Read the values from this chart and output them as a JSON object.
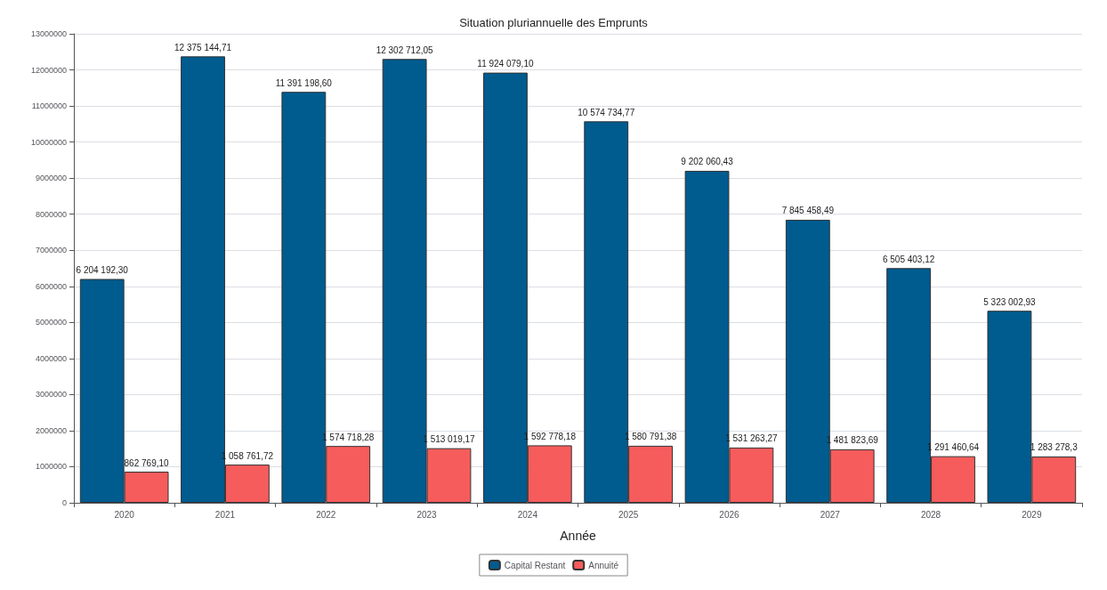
{
  "chart_data": {
    "type": "bar",
    "title": "Situation pluriannuelle des Emprunts",
    "xlabel": "Année",
    "categories": [
      "2020",
      "2021",
      "2022",
      "2023",
      "2024",
      "2025",
      "2026",
      "2027",
      "2028",
      "2029"
    ],
    "series": [
      {
        "name": "Capital Restant",
        "color": "#005b8f",
        "values": [
          6204192.3,
          12375144.71,
          11391198.6,
          12302712.05,
          11924079.1,
          10574734.77,
          9202060.43,
          7845458.49,
          6505403.12,
          5323002.93
        ],
        "value_labels": [
          "6 204 192,30",
          "12 375 144,71",
          "11 391 198,60",
          "12 302 712,05",
          "11 924 079,10",
          "10 574 734,77",
          "9 202 060,43",
          "7 845 458,49",
          "6 505 403,12",
          "5 323 002,93"
        ]
      },
      {
        "name": "Annuité",
        "color": "#f75c5c",
        "values": [
          862769.1,
          1058761.72,
          1574718.28,
          1513019.17,
          1592778.18,
          1580791.38,
          1531263.27,
          1481823.69,
          1291460.64,
          1283278.3
        ],
        "value_labels": [
          "862 769,10",
          "1 058 761,72",
          "1 574 718,28",
          "1 513 019,17",
          "1 592 778,18",
          "1 580 791,38",
          "1 531 263,27",
          "1 481 823,69",
          "1 291 460,64",
          "1 283 278,3"
        ]
      }
    ],
    "ylim": [
      0,
      13000000
    ],
    "yticks": [
      0,
      1000000,
      2000000,
      3000000,
      4000000,
      5000000,
      6000000,
      7000000,
      8000000,
      9000000,
      10000000,
      11000000,
      12000000,
      13000000
    ],
    "grid": "y",
    "legend": "bottom"
  }
}
